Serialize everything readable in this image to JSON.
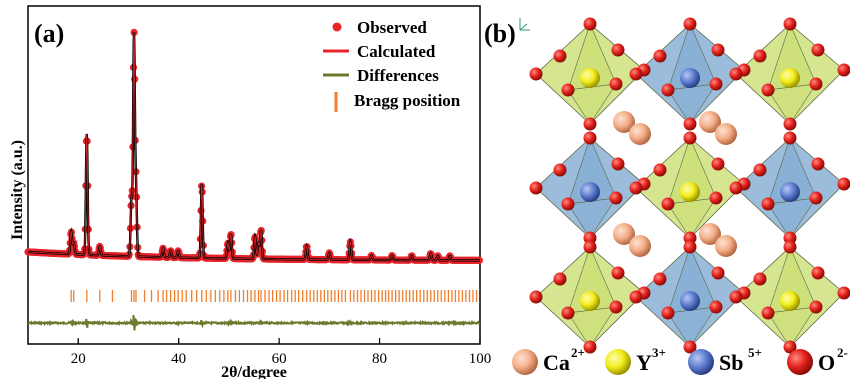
{
  "panels": {
    "a_label": "(a)",
    "b_label": "(b)"
  },
  "chart_data": {
    "type": "line",
    "title": "",
    "xlabel": "2θ/degree",
    "ylabel": "Intensity (a.u.)",
    "xlim": [
      10,
      100
    ],
    "xticks": [
      "20",
      "40",
      "60",
      "80",
      "100"
    ],
    "legend_position": "top-right",
    "series": [
      {
        "name": "Observed",
        "kind": "markers",
        "color": "#e8252b"
      },
      {
        "name": "Calculated",
        "kind": "line",
        "color": "#e8252b"
      },
      {
        "name": "Differences",
        "kind": "line",
        "color": "#6b7a2c"
      },
      {
        "name": "Bragg position",
        "kind": "ticks",
        "color": "#f07d2a"
      }
    ],
    "background": 0.04,
    "peaks": [
      {
        "x": 18.6,
        "h": 0.1
      },
      {
        "x": 19.1,
        "h": 0.05
      },
      {
        "x": 21.7,
        "h": 0.54
      },
      {
        "x": 24.3,
        "h": 0.04
      },
      {
        "x": 30.6,
        "h": 0.25
      },
      {
        "x": 31.1,
        "h": 0.98
      },
      {
        "x": 31.5,
        "h": 0.3
      },
      {
        "x": 36.9,
        "h": 0.04
      },
      {
        "x": 38.4,
        "h": 0.03
      },
      {
        "x": 39.9,
        "h": 0.03
      },
      {
        "x": 44.6,
        "h": 0.33
      },
      {
        "x": 49.8,
        "h": 0.07
      },
      {
        "x": 50.4,
        "h": 0.11
      },
      {
        "x": 55.2,
        "h": 0.1
      },
      {
        "x": 55.9,
        "h": 0.07
      },
      {
        "x": 56.4,
        "h": 0.13
      },
      {
        "x": 65.5,
        "h": 0.06
      },
      {
        "x": 70.0,
        "h": 0.03
      },
      {
        "x": 74.2,
        "h": 0.08
      },
      {
        "x": 78.4,
        "h": 0.02
      },
      {
        "x": 82.5,
        "h": 0.02
      },
      {
        "x": 86.4,
        "h": 0.02
      },
      {
        "x": 90.2,
        "h": 0.03
      },
      {
        "x": 91.6,
        "h": 0.02
      },
      {
        "x": 94.0,
        "h": 0.02
      }
    ],
    "bragg_positions": [
      18.6,
      19.1,
      21.7,
      24.3,
      26.8,
      30.6,
      31.1,
      31.5,
      33.2,
      34.6,
      35.9,
      36.9,
      37.6,
      38.4,
      39.2,
      39.9,
      40.7,
      41.5,
      42.6,
      43.6,
      44.6,
      45.5,
      46.4,
      47.3,
      48.2,
      49.0,
      49.8,
      50.4,
      51.3,
      52.1,
      52.9,
      53.7,
      54.4,
      55.2,
      55.9,
      56.4,
      57.2,
      58.0,
      58.7,
      59.5,
      60.2,
      61.0,
      61.7,
      62.5,
      63.2,
      63.9,
      64.7,
      65.5,
      66.2,
      66.9,
      67.6,
      68.3,
      69.0,
      69.7,
      70.4,
      71.1,
      71.8,
      72.5,
      73.2,
      74.2,
      74.9,
      75.6,
      76.3,
      77.0,
      77.7,
      78.4,
      79.1,
      79.8,
      80.5,
      81.2,
      81.8,
      82.5,
      83.2,
      83.9,
      84.6,
      85.3,
      86.0,
      86.7,
      87.4,
      88.1,
      88.8,
      89.5,
      90.2,
      90.9,
      91.6,
      92.3,
      93.0,
      93.7,
      94.4,
      95.1,
      95.8,
      96.5,
      97.2,
      97.9,
      98.6,
      99.3
    ]
  },
  "structure_key": [
    {
      "symbol": "Ca",
      "charge": "2+",
      "color": "#f4b08a",
      "icon": "ca-ion-icon"
    },
    {
      "symbol": "Y",
      "charge": "3+",
      "color": "#f2ee1a",
      "icon": "y-ion-icon"
    },
    {
      "symbol": "Sb",
      "charge": "5+",
      "color": "#6f8ed8",
      "icon": "sb-ion-icon"
    },
    {
      "symbol": "O",
      "charge": "2-",
      "color": "#e3211c",
      "icon": "o-ion-icon"
    }
  ],
  "colors": {
    "octa_yellow": "#c8dc6a",
    "octa_blue": "#7aa6cf",
    "oxygen": "#e3211c",
    "y_ion": "#f2ee1a",
    "sb_ion": "#3b5fc8",
    "ca_ion": "#f4b08a"
  }
}
